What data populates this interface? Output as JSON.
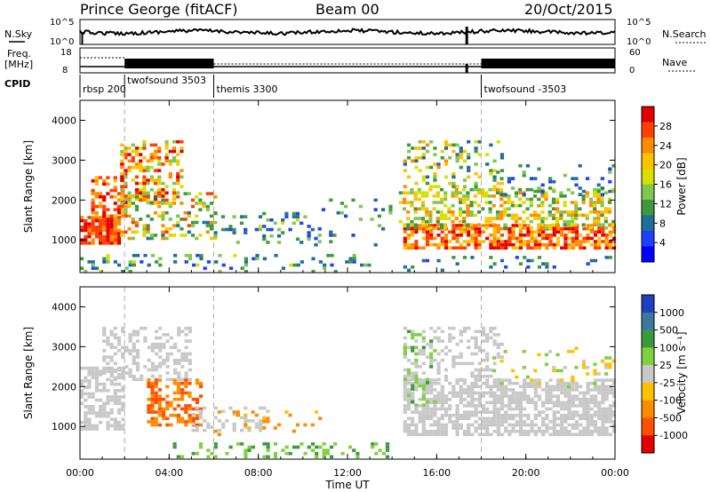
{
  "header": {
    "station": "Prince George (fitACF)",
    "beam": "Beam 00",
    "date": "20/Oct/2015"
  },
  "left_labels": {
    "nsky": "N.Sky",
    "freq": "Freq.",
    "freq_unit": "[MHz]",
    "cpid": "CPID"
  },
  "right_labels": {
    "nsearch": "N.Search",
    "nave": "Nave"
  },
  "noise_axis_ticks": [
    "10^5",
    "10^0"
  ],
  "freq_axis_ticks": [
    "18",
    "8"
  ],
  "nave_axis_ticks": [
    "60",
    "0"
  ],
  "cpid_segments": [
    {
      "label": "rbsp 200",
      "start_hour": 0.0
    },
    {
      "label": "twofsound 3503",
      "start_hour": 2.0
    },
    {
      "label": "themis 3300",
      "start_hour": 6.0
    },
    {
      "label": "twofsound -3503",
      "start_hour": 18.0
    }
  ],
  "mode_boundaries_hours": [
    2,
    6,
    18
  ],
  "time_axis": {
    "title": "Time UT",
    "ticks": [
      "00:00",
      "04:00",
      "08:00",
      "12:00",
      "16:00",
      "20:00",
      "00:00"
    ],
    "range_hours": [
      0,
      24
    ]
  },
  "slant_axis": {
    "title": "Slant Range [km]",
    "ticks": [
      "4000",
      "3000",
      "2000",
      "1000"
    ],
    "range_km": [
      180,
      4500
    ]
  },
  "power_colorbar": {
    "title": "Power [dB]",
    "ticks": [
      "28",
      "24",
      "20",
      "16",
      "12",
      "8",
      "4"
    ],
    "colors": [
      "#e50000",
      "#ff4000",
      "#ff8c00",
      "#ffc000",
      "#d8e000",
      "#7ec850",
      "#3c9a3c",
      "#1e6e9a",
      "#2040ff",
      "#0000ff"
    ]
  },
  "velocity_colorbar": {
    "title": "Velocity [m s⁻¹]",
    "ticks": [
      "1000",
      "500",
      "100",
      "25",
      "-25",
      "-100",
      "-500",
      "-1000"
    ],
    "colors": [
      "#2040c0",
      "#3c78a0",
      "#3c9a3c",
      "#80d040",
      "#c8c8c8",
      "#ffc000",
      "#ff8c00",
      "#ff5000",
      "#e50000"
    ]
  },
  "chart_data": [
    {
      "type": "heatmap",
      "title": "Power [dB]",
      "xlabel": "Time UT",
      "ylabel": "Slant Range [km]",
      "x_range_hours": [
        0,
        24
      ],
      "y_range_km": [
        180,
        4500
      ],
      "value_range_db": [
        0,
        30
      ],
      "scatter_regions": [
        {
          "t0": 0.0,
          "t1": 1.8,
          "r0": 900,
          "r1": 1600,
          "db_lo": 22,
          "db_hi": 30,
          "density": 0.85
        },
        {
          "t0": 0.5,
          "t1": 2.0,
          "r0": 1600,
          "r1": 2600,
          "db_lo": 18,
          "db_hi": 30,
          "density": 0.55
        },
        {
          "t0": 1.8,
          "t1": 4.5,
          "r0": 1900,
          "r1": 3500,
          "db_lo": 12,
          "db_hi": 30,
          "density": 0.45
        },
        {
          "t0": 1.8,
          "t1": 6.0,
          "r0": 1000,
          "r1": 2200,
          "db_lo": 8,
          "db_hi": 26,
          "density": 0.35
        },
        {
          "t0": 6.0,
          "t1": 10.5,
          "r0": 900,
          "r1": 1700,
          "db_lo": 4,
          "db_hi": 16,
          "density": 0.25
        },
        {
          "t0": 0.0,
          "t1": 13.5,
          "r0": 200,
          "r1": 650,
          "db_lo": 4,
          "db_hi": 16,
          "density": 0.2
        },
        {
          "t0": 10.5,
          "t1": 14.0,
          "r0": 900,
          "r1": 2200,
          "db_lo": 4,
          "db_hi": 14,
          "density": 0.08
        },
        {
          "t0": 14.5,
          "t1": 24.0,
          "r0": 800,
          "r1": 1400,
          "db_lo": 18,
          "db_hi": 30,
          "density": 0.7
        },
        {
          "t0": 14.3,
          "t1": 24.0,
          "r0": 1300,
          "r1": 2300,
          "db_lo": 10,
          "db_hi": 24,
          "density": 0.45
        },
        {
          "t0": 14.5,
          "t1": 19.0,
          "r0": 2300,
          "r1": 3500,
          "db_lo": 6,
          "db_hi": 22,
          "density": 0.3
        },
        {
          "t0": 18.5,
          "t1": 24.0,
          "r0": 2100,
          "r1": 2900,
          "db_lo": 4,
          "db_hi": 14,
          "density": 0.15
        },
        {
          "t0": 14.5,
          "t1": 24.0,
          "r0": 200,
          "r1": 600,
          "db_lo": 4,
          "db_hi": 12,
          "density": 0.12
        }
      ]
    },
    {
      "type": "heatmap",
      "title": "Velocity [m s⁻¹]",
      "xlabel": "Time UT",
      "ylabel": "Slant Range [km]",
      "x_range_hours": [
        0,
        24
      ],
      "y_range_km": [
        180,
        4500
      ],
      "value_range_ms": [
        -1000,
        1000
      ],
      "scatter_regions": [
        {
          "t0": 0.0,
          "t1": 2.0,
          "r0": 900,
          "r1": 2500,
          "vel_lo": -25,
          "vel_hi": 25,
          "density": 0.55
        },
        {
          "t0": 1.0,
          "t1": 5.0,
          "r0": 2200,
          "r1": 3500,
          "vel_lo": -25,
          "vel_hi": 25,
          "density": 0.45
        },
        {
          "t0": 3.0,
          "t1": 5.5,
          "r0": 1000,
          "r1": 2200,
          "vel_lo": -800,
          "vel_hi": -100,
          "density": 0.55
        },
        {
          "t0": 5.0,
          "t1": 8.5,
          "r0": 900,
          "r1": 1500,
          "vel_lo": -25,
          "vel_hi": 25,
          "density": 0.3
        },
        {
          "t0": 4.0,
          "t1": 14.0,
          "r0": 200,
          "r1": 600,
          "vel_lo": 25,
          "vel_hi": 150,
          "density": 0.25
        },
        {
          "t0": 6.0,
          "t1": 11.0,
          "r0": 800,
          "r1": 1400,
          "vel_lo": -300,
          "vel_hi": -50,
          "density": 0.12
        },
        {
          "t0": 14.5,
          "t1": 24.0,
          "r0": 800,
          "r1": 2200,
          "vel_lo": -25,
          "vel_hi": 25,
          "density": 0.7
        },
        {
          "t0": 14.5,
          "t1": 19.0,
          "r0": 2200,
          "r1": 3500,
          "vel_lo": -25,
          "vel_hi": 25,
          "density": 0.3
        },
        {
          "t0": 14.5,
          "t1": 16.0,
          "r0": 1500,
          "r1": 3500,
          "vel_lo": 25,
          "vel_hi": 150,
          "density": 0.15
        },
        {
          "t0": 18.5,
          "t1": 24.0,
          "r0": 2000,
          "r1": 3000,
          "vel_lo": -100,
          "vel_hi": 100,
          "density": 0.12
        }
      ]
    },
    {
      "type": "line",
      "title": "N.Sky / N.Search",
      "x_range_hours": [
        0,
        24
      ],
      "y_scale": "log",
      "y_range": [
        1,
        100000
      ],
      "level_log10": 2.4
    }
  ]
}
